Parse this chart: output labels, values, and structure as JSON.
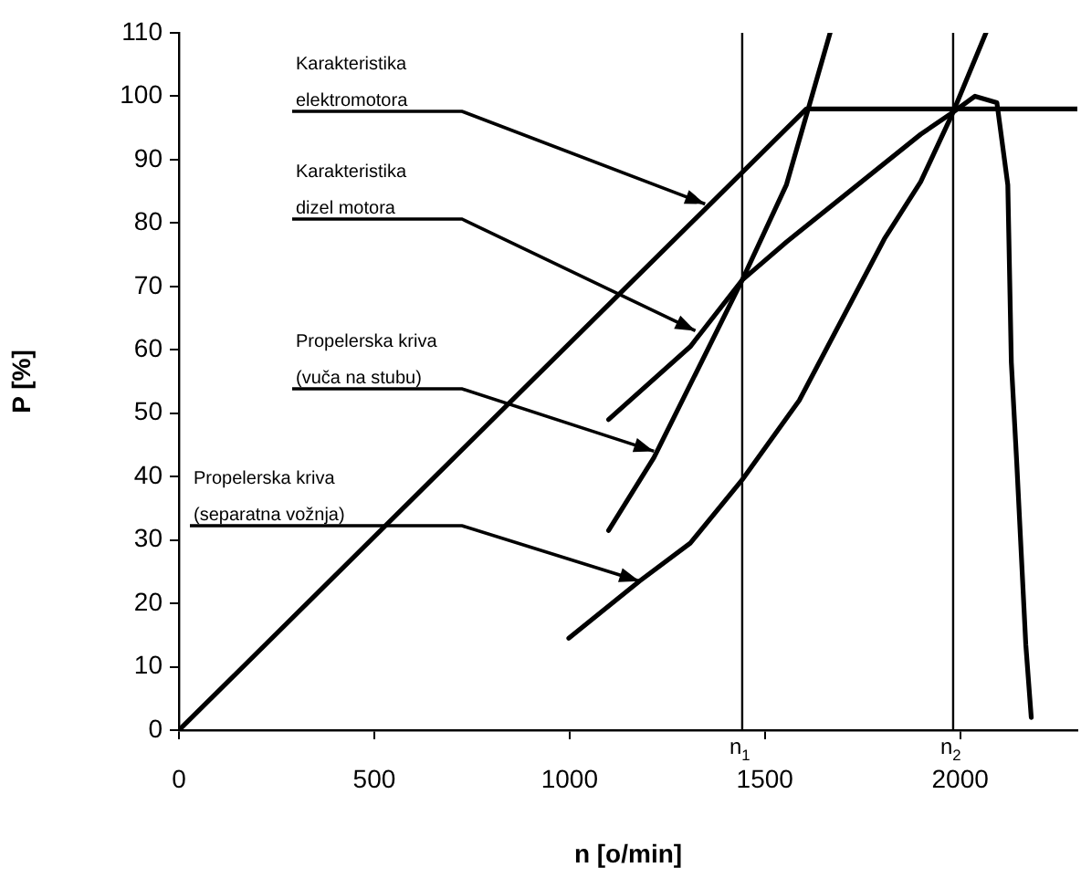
{
  "chart_data": {
    "type": "line",
    "xlabel": "n [o/min]",
    "ylabel": "P [%]",
    "xlim": [
      0,
      2300
    ],
    "xticks": [
      0,
      500,
      1000,
      1500,
      2000
    ],
    "ylim": [
      0,
      110
    ],
    "yticks": [
      0,
      10,
      20,
      30,
      40,
      50,
      60,
      70,
      80,
      90,
      100,
      110
    ],
    "legend": false,
    "marker": "none",
    "line_style": "solid",
    "series": [
      {
        "color": "#000000",
        "x": [
          0,
          1606,
          2300
        ],
        "values": [
          0,
          98,
          98
        ]
      },
      {
        "color": "#000000",
        "x": [
          1100,
          1309,
          1442,
          1555,
          1899,
          1982,
          2038,
          2094,
          2122,
          2131,
          2145,
          2168,
          2182
        ],
        "values": [
          49,
          60.5,
          71,
          77,
          94,
          97.5,
          100,
          99,
          86,
          58,
          42,
          13.5,
          2
        ]
      },
      {
        "color": "#000000",
        "x": [
          1100,
          1216,
          1442,
          1555,
          1667
        ],
        "values": [
          31.5,
          43,
          71,
          86,
          110
        ]
      },
      {
        "color": "#000000",
        "x": [
          998,
          1179,
          1309,
          1442,
          1588,
          1806,
          1899,
          1982,
          2066
        ],
        "values": [
          14.5,
          23.5,
          29.5,
          39.5,
          52,
          77.5,
          86.5,
          97.5,
          110
        ]
      }
    ],
    "ref_lines": [
      {
        "axis": "x",
        "value": 1442,
        "label": "n$_{1}$",
        "color": "#000000"
      },
      {
        "axis": "x",
        "value": 1982,
        "label": "n$_{2}$",
        "color": "#000000"
      }
    ],
    "annotations": [
      {
        "text": "Karakteristika\nelektromotora",
        "x": 1347,
        "y": 83
      },
      {
        "text": "Karakteristika\ndizel motora",
        "x": 1322,
        "y": 63
      },
      {
        "text": "Propelerska kriva\n(vuča na stubu)",
        "x": 1216,
        "y": 44
      },
      {
        "text": "Propelerska kriva\n(separatna vožnja)",
        "x": 1179,
        "y": 23.5
      }
    ]
  }
}
